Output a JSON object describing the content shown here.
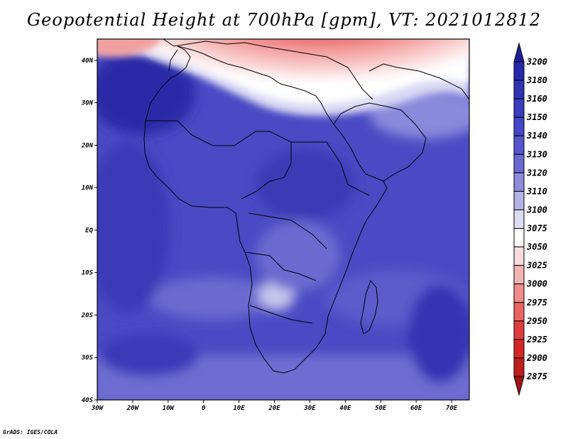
{
  "title": "Geopotential Height at 700hPa [gpm], VT: 2021012812",
  "credit": "GrADS: IGES/COLA",
  "map": {
    "lon_range": [
      -30,
      75
    ],
    "lat_range": [
      -40,
      45
    ],
    "lon_ticks": [
      "30W",
      "20W",
      "10W",
      "0",
      "10E",
      "20E",
      "30E",
      "40E",
      "50E",
      "60E",
      "70E"
    ],
    "lat_ticks": [
      "40N",
      "30N",
      "20N",
      "10N",
      "EQ",
      "10S",
      "20S",
      "30S",
      "40S"
    ]
  },
  "colorbar": {
    "levels": [
      "3200",
      "3180",
      "3160",
      "3150",
      "3140",
      "3130",
      "3120",
      "3110",
      "3100",
      "3075",
      "3050",
      "3025",
      "3000",
      "2975",
      "2950",
      "2925",
      "2900",
      "2875"
    ],
    "colors": [
      "#1e1e96",
      "#2828aa",
      "#3232b4",
      "#3c3cbe",
      "#4646c8",
      "#5555cd",
      "#6969d2",
      "#8c8cdc",
      "#b4b4e6",
      "#dcdcf5",
      "#ffffff",
      "#fadcdc",
      "#f5b4b4",
      "#f08c8c",
      "#eb6464",
      "#e13c3c",
      "#d72828",
      "#be1e1e",
      "#a01414"
    ]
  }
}
